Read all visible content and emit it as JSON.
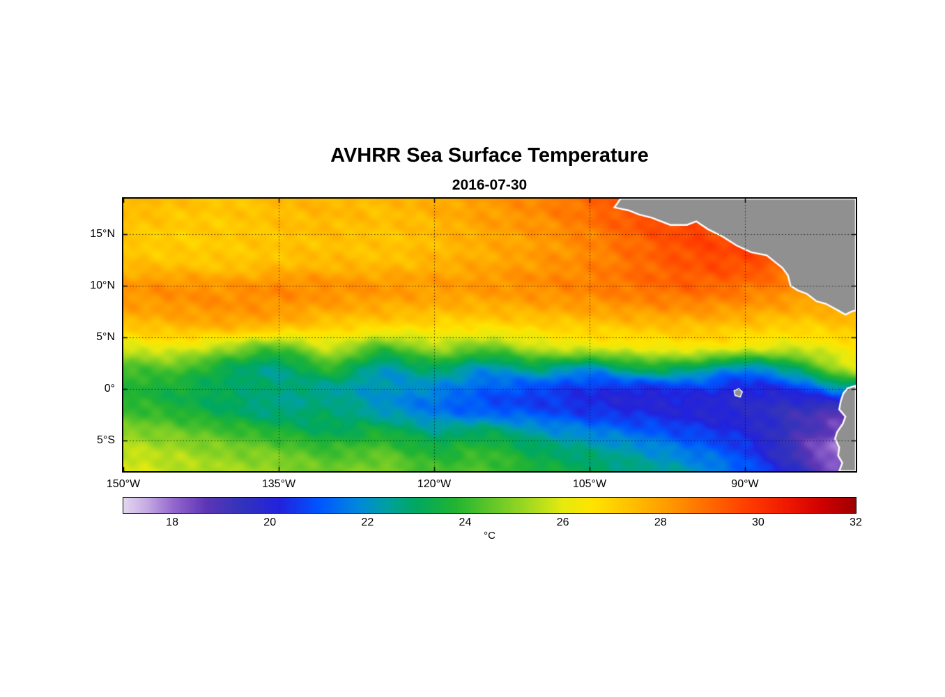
{
  "figure": {
    "title": "AVHRR Sea Surface Temperature",
    "subtitle": "2016-07-30"
  },
  "chart_data": {
    "type": "heatmap",
    "title": "AVHRR Sea Surface Temperature",
    "subtitle": "2016-07-30",
    "x_axis": {
      "kind": "longitude",
      "range": [
        -150,
        -79.3
      ],
      "ticks": [
        {
          "v": -150,
          "label": "150°W"
        },
        {
          "v": -135,
          "label": "135°W"
        },
        {
          "v": -120,
          "label": "120°W"
        },
        {
          "v": -105,
          "label": "105°W"
        },
        {
          "v": -90,
          "label": "90°W"
        }
      ]
    },
    "y_axis": {
      "kind": "latitude",
      "range": [
        -8,
        18.45
      ],
      "ticks": [
        {
          "v": 15,
          "label": "15°N"
        },
        {
          "v": 10,
          "label": "10°N"
        },
        {
          "v": 5,
          "label": "5°N"
        },
        {
          "v": 0,
          "label": "0°"
        },
        {
          "v": -5,
          "label": "5°S"
        }
      ]
    },
    "grid": {
      "lons": [
        -150,
        -145,
        -140,
        -135,
        -130,
        -125,
        -120,
        -115,
        -110,
        -105,
        -100,
        -95,
        -90,
        -85,
        -80
      ],
      "lats": [
        18,
        16,
        14,
        12,
        10,
        8,
        6,
        4,
        2,
        0,
        -2,
        -4,
        -6,
        -8
      ],
      "sst_c": [
        [
          27.6,
          27.4,
          27.3,
          27.5,
          27.6,
          27.5,
          27.8,
          28.1,
          28.5,
          29.0,
          29.6,
          29.8,
          29.5,
          29.2,
          29.0
        ],
        [
          27.4,
          27.2,
          27.2,
          27.4,
          27.5,
          27.4,
          27.6,
          28.0,
          28.3,
          28.8,
          29.4,
          29.7,
          29.4,
          29.1,
          28.9
        ],
        [
          27.2,
          27.1,
          27.2,
          27.3,
          27.4,
          27.3,
          27.5,
          27.8,
          28.1,
          28.5,
          29.1,
          29.6,
          29.6,
          29.2,
          28.9
        ],
        [
          27.5,
          27.4,
          27.3,
          27.5,
          27.6,
          27.5,
          27.7,
          27.9,
          28.2,
          28.5,
          29.0,
          29.4,
          29.5,
          29.0,
          28.7
        ],
        [
          28.2,
          28.3,
          28.2,
          28.4,
          28.3,
          28.2,
          28.1,
          28.2,
          28.4,
          28.6,
          28.9,
          29.1,
          28.9,
          28.5,
          28.2
        ],
        [
          28.0,
          28.2,
          28.3,
          28.2,
          28.0,
          27.8,
          27.7,
          27.7,
          27.9,
          28.1,
          28.3,
          28.4,
          28.2,
          27.9,
          27.8
        ],
        [
          27.2,
          27.5,
          27.6,
          27.4,
          27.0,
          26.8,
          26.7,
          26.7,
          26.9,
          27.1,
          27.3,
          27.4,
          27.2,
          27.0,
          27.3
        ],
        [
          25.9,
          26.1,
          25.3,
          24.4,
          25.7,
          24.2,
          25.3,
          24.6,
          25.6,
          25.9,
          26.1,
          26.3,
          26.0,
          25.8,
          26.4
        ],
        [
          24.2,
          24.4,
          23.3,
          22.7,
          23.9,
          22.3,
          23.1,
          22.1,
          22.9,
          22.1,
          23.4,
          23.0,
          21.9,
          23.2,
          25.6
        ],
        [
          23.8,
          23.5,
          23.1,
          22.8,
          22.5,
          22.1,
          21.8,
          21.2,
          20.8,
          20.5,
          20.3,
          20.6,
          20.2,
          20.6,
          22.2
        ],
        [
          24.1,
          23.7,
          23.1,
          22.6,
          22.9,
          22.1,
          21.5,
          21.0,
          20.8,
          20.4,
          20.2,
          20.0,
          19.8,
          19.4,
          19.0
        ],
        [
          24.9,
          24.6,
          24.1,
          23.6,
          23.1,
          23.4,
          22.6,
          22.9,
          22.1,
          21.6,
          21.1,
          20.6,
          20.1,
          19.2,
          18.4
        ],
        [
          25.6,
          25.3,
          24.9,
          24.6,
          24.1,
          24.3,
          23.6,
          23.9,
          23.1,
          22.6,
          22.1,
          21.4,
          20.6,
          19.0,
          17.6
        ],
        [
          25.9,
          25.6,
          25.3,
          25.1,
          24.6,
          24.9,
          24.1,
          24.3,
          23.6,
          23.1,
          22.6,
          22.1,
          21.1,
          19.6,
          18.1
        ]
      ]
    },
    "colorbar": {
      "range": [
        17,
        32
      ],
      "unit": "°C",
      "ticks": [
        {
          "v": 18,
          "label": "18"
        },
        {
          "v": 20,
          "label": "20"
        },
        {
          "v": 22,
          "label": "22"
        },
        {
          "v": 24,
          "label": "24"
        },
        {
          "v": 26,
          "label": "26"
        },
        {
          "v": 28,
          "label": "28"
        },
        {
          "v": 30,
          "label": "30"
        },
        {
          "v": 32,
          "label": "32"
        }
      ],
      "stops": [
        [
          17.0,
          "#e4d7ef"
        ],
        [
          17.5,
          "#c3a8e2"
        ],
        [
          18.0,
          "#9669cf"
        ],
        [
          18.7,
          "#5c35b5"
        ],
        [
          19.4,
          "#3333bb"
        ],
        [
          20.2,
          "#2222dd"
        ],
        [
          21.0,
          "#0055ff"
        ],
        [
          21.8,
          "#0088dd"
        ],
        [
          22.4,
          "#00a0a0"
        ],
        [
          23.0,
          "#00a860"
        ],
        [
          23.8,
          "#22b432"
        ],
        [
          24.6,
          "#66c828"
        ],
        [
          25.4,
          "#abdc1e"
        ],
        [
          26.0,
          "#e6ea10"
        ],
        [
          26.6,
          "#ffe400"
        ],
        [
          27.4,
          "#ffc000"
        ],
        [
          28.2,
          "#ff9800"
        ],
        [
          29.0,
          "#ff6a00"
        ],
        [
          29.8,
          "#ff3c00"
        ],
        [
          30.6,
          "#f01800"
        ],
        [
          31.3,
          "#d00000"
        ],
        [
          32.0,
          "#a00000"
        ]
      ]
    },
    "land": {
      "fill": "#909090",
      "coast": "#ffffff",
      "regions": [
        {
          "name": "central-america",
          "closure": "top-right",
          "points": [
            [
              -102.0,
              18.45
            ],
            [
              -102.6,
              17.6
            ],
            [
              -101.2,
              17.3
            ],
            [
              -100.2,
              16.9
            ],
            [
              -99.0,
              16.6
            ],
            [
              -97.2,
              15.9
            ],
            [
              -95.6,
              15.9
            ],
            [
              -94.7,
              16.25
            ],
            [
              -93.6,
              15.5
            ],
            [
              -92.2,
              14.8
            ],
            [
              -90.8,
              13.9
            ],
            [
              -89.4,
              13.25
            ],
            [
              -87.9,
              12.95
            ],
            [
              -87.1,
              12.3
            ],
            [
              -86.4,
              11.75
            ],
            [
              -85.85,
              11.0
            ],
            [
              -85.6,
              10.0
            ],
            [
              -84.9,
              9.55
            ],
            [
              -84.0,
              9.2
            ],
            [
              -83.1,
              8.5
            ],
            [
              -82.2,
              8.25
            ],
            [
              -81.1,
              7.65
            ],
            [
              -80.3,
              7.2
            ],
            [
              -79.7,
              7.5
            ],
            [
              -79.3,
              7.6
            ],
            [
              -79.3,
              18.45
            ]
          ]
        },
        {
          "name": "south-america",
          "closure": "bottom-right",
          "points": [
            [
              -79.3,
              0.3
            ],
            [
              -80.1,
              0.05
            ],
            [
              -80.5,
              -0.45
            ],
            [
              -80.75,
              -1.2
            ],
            [
              -80.9,
              -2.0
            ],
            [
              -80.3,
              -2.7
            ],
            [
              -80.55,
              -3.4
            ],
            [
              -81.1,
              -4.2
            ],
            [
              -81.3,
              -4.85
            ],
            [
              -80.9,
              -5.7
            ],
            [
              -81.0,
              -6.5
            ],
            [
              -80.6,
              -7.2
            ],
            [
              -80.9,
              -8.0
            ],
            [
              -79.3,
              -8.0
            ]
          ]
        },
        {
          "name": "galapagos-islands",
          "closure": "island",
          "points": [
            [
              -91.05,
              -0.2
            ],
            [
              -90.6,
              0.0
            ],
            [
              -90.25,
              -0.3
            ],
            [
              -90.45,
              -0.8
            ],
            [
              -90.95,
              -0.65
            ]
          ]
        }
      ]
    },
    "gridlines": {
      "style": "dotted",
      "color": "#000000"
    }
  }
}
